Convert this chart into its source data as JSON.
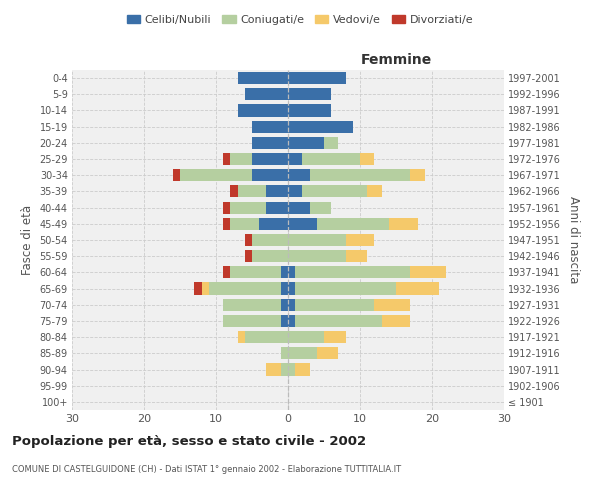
{
  "age_groups": [
    "100+",
    "95-99",
    "90-94",
    "85-89",
    "80-84",
    "75-79",
    "70-74",
    "65-69",
    "60-64",
    "55-59",
    "50-54",
    "45-49",
    "40-44",
    "35-39",
    "30-34",
    "25-29",
    "20-24",
    "15-19",
    "10-14",
    "5-9",
    "0-4"
  ],
  "birth_years": [
    "≤ 1901",
    "1902-1906",
    "1907-1911",
    "1912-1916",
    "1917-1921",
    "1922-1926",
    "1927-1931",
    "1932-1936",
    "1937-1941",
    "1942-1946",
    "1947-1951",
    "1952-1956",
    "1957-1961",
    "1962-1966",
    "1967-1971",
    "1972-1976",
    "1977-1981",
    "1982-1986",
    "1987-1991",
    "1992-1996",
    "1997-2001"
  ],
  "males": {
    "celibi": [
      0,
      0,
      0,
      0,
      0,
      1,
      1,
      1,
      1,
      0,
      0,
      4,
      3,
      3,
      5,
      5,
      5,
      5,
      7,
      6,
      7
    ],
    "coniugati": [
      0,
      0,
      1,
      1,
      6,
      8,
      8,
      10,
      7,
      5,
      5,
      4,
      5,
      4,
      10,
      3,
      0,
      0,
      0,
      0,
      0
    ],
    "vedovi": [
      0,
      0,
      2,
      0,
      1,
      0,
      0,
      1,
      0,
      0,
      0,
      0,
      0,
      0,
      0,
      0,
      0,
      0,
      0,
      0,
      0
    ],
    "divorziati": [
      0,
      0,
      0,
      0,
      0,
      0,
      0,
      1,
      1,
      1,
      1,
      1,
      1,
      1,
      1,
      1,
      0,
      0,
      0,
      0,
      0
    ]
  },
  "females": {
    "nubili": [
      0,
      0,
      0,
      0,
      0,
      1,
      1,
      1,
      1,
      0,
      0,
      4,
      3,
      2,
      3,
      2,
      5,
      9,
      6,
      6,
      8
    ],
    "coniugate": [
      0,
      0,
      1,
      4,
      5,
      12,
      11,
      14,
      16,
      8,
      8,
      10,
      3,
      9,
      14,
      8,
      2,
      0,
      0,
      0,
      0
    ],
    "vedove": [
      0,
      0,
      2,
      3,
      3,
      4,
      5,
      6,
      5,
      3,
      4,
      4,
      0,
      2,
      2,
      2,
      0,
      0,
      0,
      0,
      0
    ],
    "divorziate": [
      0,
      0,
      0,
      0,
      0,
      0,
      0,
      0,
      0,
      0,
      0,
      0,
      0,
      0,
      0,
      0,
      0,
      0,
      0,
      0,
      0
    ]
  },
  "color_celibi": "#3a6fa8",
  "color_coniugati": "#b5cfa0",
  "color_vedovi": "#f5c96a",
  "color_divorziati": "#c0392b",
  "title_main": "Popolazione per età, sesso e stato civile - 2002",
  "title_sub": "COMUNE DI CASTELGUIDONE (CH) - Dati ISTAT 1° gennaio 2002 - Elaborazione TUTTITALIA.IT",
  "xlabel_right": "Femmine",
  "ylabel_left": "Fasce di età",
  "ylabel_right": "Anni di nascita",
  "xlim": 30,
  "bg_color": "#f0f0f0",
  "grid_color": "#cccccc"
}
